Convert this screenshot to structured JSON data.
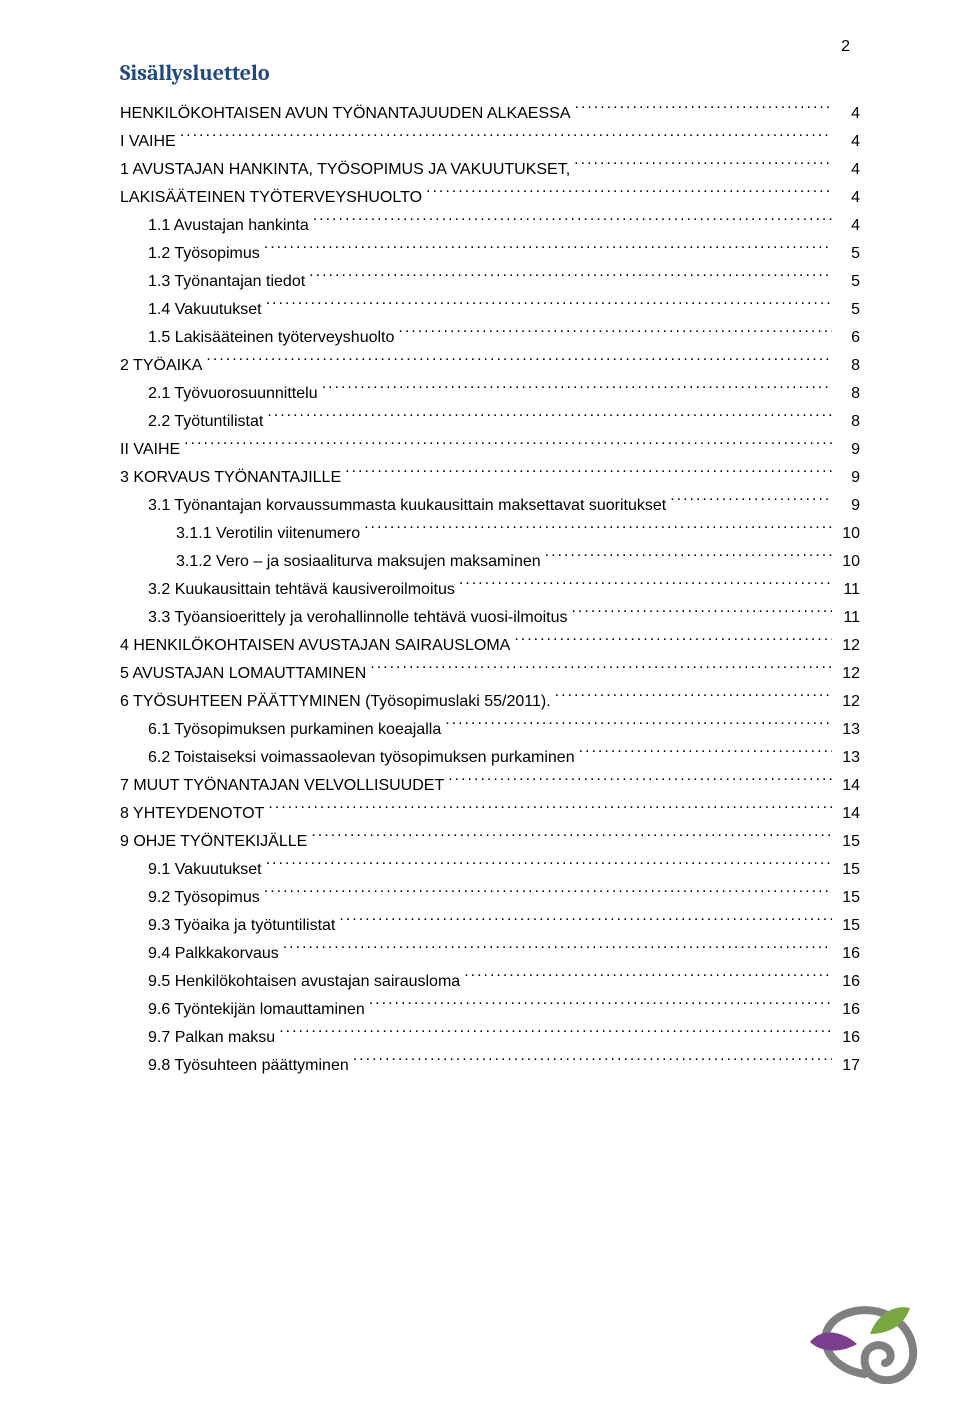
{
  "page_number": "2",
  "title": "Sisällysluettelo",
  "colors": {
    "title": "#1F497D",
    "text": "#000000",
    "background": "#ffffff",
    "logo_grey": "#808080",
    "logo_green": "#7AA641",
    "logo_purple": "#7A3E8F"
  },
  "toc": [
    {
      "level": 0,
      "label": "HENKILÖKOHTAISEN AVUN TYÖNANTAJUUDEN ALKAESSA",
      "page": "4"
    },
    {
      "level": 0,
      "label": "I VAIHE",
      "page": "4"
    },
    {
      "level": 0,
      "label": "1 AVUSTAJAN HANKINTA, TYÖSOPIMUS JA VAKUUTUKSET,",
      "page": "4"
    },
    {
      "level": 0,
      "label": "LAKISÄÄTEINEN TYÖTERVEYSHUOLTO",
      "page": "4"
    },
    {
      "level": 1,
      "label": "1.1 Avustajan hankinta",
      "page": "4"
    },
    {
      "level": 1,
      "label": "1.2 Työsopimus",
      "page": "5"
    },
    {
      "level": 1,
      "label": "1.3 Työnantajan tiedot",
      "page": "5"
    },
    {
      "level": 1,
      "label": "1.4 Vakuutukset",
      "page": "5"
    },
    {
      "level": 1,
      "label": "1.5 Lakisääteinen työterveyshuolto",
      "page": "6"
    },
    {
      "level": 0,
      "label": "2 TYÖAIKA",
      "page": "8"
    },
    {
      "level": 1,
      "label": "2.1 Työvuorosuunnittelu",
      "page": "8"
    },
    {
      "level": 1,
      "label": "2.2 Työtuntilistat",
      "page": "8"
    },
    {
      "level": 0,
      "label": "II VAIHE",
      "page": "9"
    },
    {
      "level": 0,
      "label": "3 KORVAUS TYÖNANTAJILLE",
      "page": "9"
    },
    {
      "level": 1,
      "label": "3.1 Työnantajan korvaussummasta kuukausittain maksettavat suoritukset",
      "page": "9"
    },
    {
      "level": 2,
      "label": "3.1.1 Verotilin viitenumero",
      "page": "10"
    },
    {
      "level": 2,
      "label": "3.1.2 Vero – ja sosiaaliturva maksujen maksaminen",
      "page": "10"
    },
    {
      "level": 1,
      "label": "3.2 Kuukausittain tehtävä kausiveroilmoitus",
      "page": "11"
    },
    {
      "level": 1,
      "label": "3.3 Työansioerittely ja verohallinnolle tehtävä vuosi-ilmoitus",
      "page": "11"
    },
    {
      "level": 0,
      "label": "4 HENKILÖKOHTAISEN AVUSTAJAN SAIRAUSLOMA",
      "page": "12"
    },
    {
      "level": 0,
      "label": "5 AVUSTAJAN LOMAUTTAMINEN",
      "page": "12"
    },
    {
      "level": 0,
      "label": "6 TYÖSUHTEEN PÄÄTTYMINEN (Työsopimuslaki 55/2011).",
      "page": "12"
    },
    {
      "level": 1,
      "label": "6.1 Työsopimuksen purkaminen koeajalla",
      "page": "13"
    },
    {
      "level": 1,
      "label": "6.2 Toistaiseksi voimassaolevan työsopimuksen purkaminen",
      "page": "13"
    },
    {
      "level": 0,
      "label": "7 MUUT TYÖNANTAJAN VELVOLLISUUDET",
      "page": "14"
    },
    {
      "level": 0,
      "label": "8 YHTEYDENOTOT",
      "page": "14"
    },
    {
      "level": 0,
      "label": "9 OHJE TYÖNTEKIJÄLLE",
      "page": "15"
    },
    {
      "level": 1,
      "label": "9.1 Vakuutukset",
      "page": "15"
    },
    {
      "level": 1,
      "label": "9.2 Työsopimus",
      "page": "15"
    },
    {
      "level": 1,
      "label": "9.3 Työaika ja työtuntilistat",
      "page": "15"
    },
    {
      "level": 1,
      "label": "9.4 Palkkakorvaus",
      "page": "16"
    },
    {
      "level": 1,
      "label": "9.5 Henkilökohtaisen avustajan sairausloma",
      "page": "16"
    },
    {
      "level": 1,
      "label": "9.6 Työntekijän lomauttaminen",
      "page": "16"
    },
    {
      "level": 1,
      "label": "9.7 Palkan maksu",
      "page": "16"
    },
    {
      "level": 1,
      "label": "9.8 Työsuhteen päättyminen",
      "page": "17"
    }
  ]
}
